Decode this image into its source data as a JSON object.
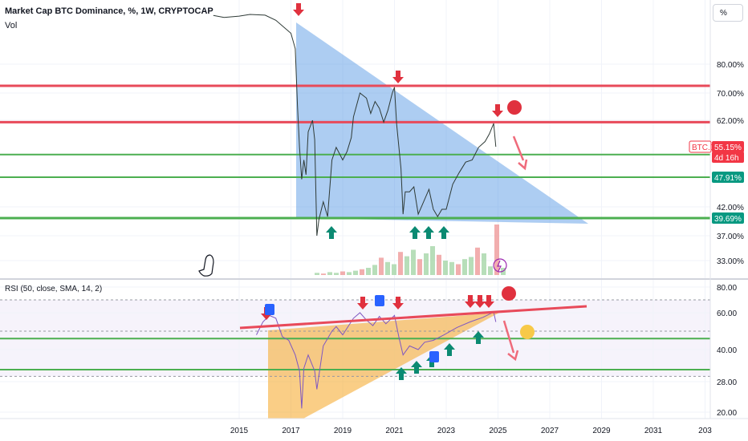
{
  "header": {
    "title": "Market Cap BTC Dominance, %, 1W, CRYPTOCAP",
    "vol_label": "Vol",
    "rsi_label": "RSI (50, close, SMA, 14, 2)",
    "unit_button": "%"
  },
  "chart_data": [
    {
      "type": "line",
      "name": "price-pane",
      "x_tick_labels": [
        "2015",
        "2017",
        "2019",
        "2021",
        "2023",
        "2025",
        "2027",
        "2029",
        "2031",
        "203"
      ],
      "y_tick_labels": [
        "80.00%",
        "70.00%",
        "62.00%",
        "42.00%",
        "37.00%",
        "33.00%"
      ],
      "y_ticks": [
        80,
        70,
        62,
        42,
        37,
        33
      ],
      "horizontal_levels": [
        {
          "value": 72.5,
          "color": "#e84a5a"
        },
        {
          "value": 61.5,
          "color": "#e84a5a"
        },
        {
          "value": 53.3,
          "color": "#4caf50"
        },
        {
          "value": 47.91,
          "color": "#4caf50"
        },
        {
          "value": 39.69,
          "color": "#4caf50"
        }
      ],
      "price_labels": [
        {
          "text": "BTC.D",
          "value": 55.15,
          "color": "#f23645"
        },
        {
          "text": "55.15%",
          "value": 55.15,
          "color": "#f23645"
        },
        {
          "text": "4d 16h",
          "value": 53.9,
          "color": "#f23645"
        },
        {
          "text": "47.91%",
          "value": 47.91,
          "color": "#089981"
        },
        {
          "text": "39.69%",
          "value": 39.69,
          "color": "#089981"
        }
      ],
      "series": [
        {
          "values": [
            [
              "2014-01",
              94.2
            ],
            [
              "2014-06",
              93.6
            ],
            [
              "2015-01",
              94.0
            ],
            [
              "2015-06",
              94.5
            ],
            [
              "2016-01",
              94.3
            ],
            [
              "2016-06",
              92.8
            ],
            [
              "2017-01",
              89.0
            ],
            [
              "2017-03",
              84.5
            ],
            [
              "2017-04",
              66.5
            ],
            [
              "2017-05",
              55.0
            ],
            [
              "2017-06",
              47.5
            ],
            [
              "2017-07",
              52.0
            ],
            [
              "2017-08",
              48.5
            ],
            [
              "2017-09",
              59.0
            ],
            [
              "2017-11",
              62.0
            ],
            [
              "2017-12",
              57.0
            ],
            [
              "2018-01",
              37.0
            ],
            [
              "2018-02",
              39.5
            ],
            [
              "2018-04",
              43.0
            ],
            [
              "2018-06",
              40.0
            ],
            [
              "2018-08",
              52.0
            ],
            [
              "2018-10",
              55.0
            ],
            [
              "2019-01",
              52.0
            ],
            [
              "2019-03",
              54.0
            ],
            [
              "2019-05",
              57.5
            ],
            [
              "2019-06",
              63.0
            ],
            [
              "2019-09",
              70.0
            ],
            [
              "2019-12",
              68.5
            ],
            [
              "2020-02",
              64.0
            ],
            [
              "2020-04",
              67.5
            ],
            [
              "2020-06",
              65.5
            ],
            [
              "2020-08",
              61.5
            ],
            [
              "2020-10",
              65.0
            ],
            [
              "2020-12",
              70.0
            ],
            [
              "2021-01",
              72.0
            ],
            [
              "2021-02",
              61.0
            ],
            [
              "2021-04",
              50.0
            ],
            [
              "2021-05",
              40.5
            ],
            [
              "2021-06",
              45.0
            ],
            [
              "2021-08",
              45.0
            ],
            [
              "2021-10",
              46.0
            ],
            [
              "2021-12",
              40.5
            ],
            [
              "2022-02",
              42.5
            ],
            [
              "2022-05",
              45.5
            ],
            [
              "2022-07",
              41.5
            ],
            [
              "2022-09",
              40.0
            ],
            [
              "2022-11",
              41.5
            ],
            [
              "2023-01",
              41.5
            ],
            [
              "2023-04",
              46.5
            ],
            [
              "2023-07",
              49.0
            ],
            [
              "2023-10",
              51.5
            ],
            [
              "2024-01",
              52.0
            ],
            [
              "2024-04",
              55.0
            ],
            [
              "2024-07",
              56.5
            ],
            [
              "2024-09",
              58.5
            ],
            [
              "2024-11",
              61.2
            ],
            [
              "2024-12",
              55.15
            ]
          ]
        }
      ],
      "volume": [
        3,
        2,
        4,
        3,
        5,
        4,
        6,
        8,
        10,
        14,
        24,
        18,
        15,
        32,
        26,
        35,
        22,
        30,
        40,
        28,
        20,
        18,
        15,
        22,
        25,
        38,
        30,
        12,
        70,
        10
      ]
    },
    {
      "type": "line",
      "name": "rsi-pane",
      "y_tick_labels": [
        "80.00",
        "60.00",
        "40.00",
        "28.00",
        "20.00"
      ],
      "y_ticks": [
        80,
        60,
        40,
        28,
        20
      ],
      "horizontal_levels": [
        {
          "value": 46,
          "color": "#4caf50"
        },
        {
          "value": 32.5,
          "color": "#4caf50"
        }
      ],
      "band": {
        "upper": 70,
        "lower": 30,
        "color": "#7e57c2"
      },
      "series": [
        {
          "values": [
            [
              "2015-09",
              48.0
            ],
            [
              "2015-12",
              55.0
            ],
            [
              "2016-03",
              58.5
            ],
            [
              "2016-06",
              57.0
            ],
            [
              "2016-09",
              47.0
            ],
            [
              "2016-12",
              45.0
            ],
            [
              "2017-03",
              38.0
            ],
            [
              "2017-05",
              32.0
            ],
            [
              "2017-06",
              21.0
            ],
            [
              "2017-07",
              33.0
            ],
            [
              "2017-09",
              38.0
            ],
            [
              "2017-12",
              32.0
            ],
            [
              "2018-01",
              26.0
            ],
            [
              "2018-04",
              42.0
            ],
            [
              "2018-08",
              50.0
            ],
            [
              "2018-10",
              52.5
            ],
            [
              "2019-01",
              48.0
            ],
            [
              "2019-06",
              57.0
            ],
            [
              "2019-09",
              60.0
            ],
            [
              "2019-12",
              56.0
            ],
            [
              "2020-03",
              53.0
            ],
            [
              "2020-06",
              58.0
            ],
            [
              "2020-09",
              54.0
            ],
            [
              "2021-01",
              58.5
            ],
            [
              "2021-03",
              47.0
            ],
            [
              "2021-05",
              38.0
            ],
            [
              "2021-08",
              42.0
            ],
            [
              "2021-12",
              40.0
            ],
            [
              "2022-03",
              44.0
            ],
            [
              "2022-07",
              45.0
            ],
            [
              "2022-12",
              48.0
            ],
            [
              "2023-06",
              52.0
            ],
            [
              "2023-12",
              55.0
            ],
            [
              "2024-06",
              57.5
            ],
            [
              "2024-11",
              60.5
            ],
            [
              "2024-12",
              55.0
            ]
          ]
        }
      ]
    }
  ]
}
